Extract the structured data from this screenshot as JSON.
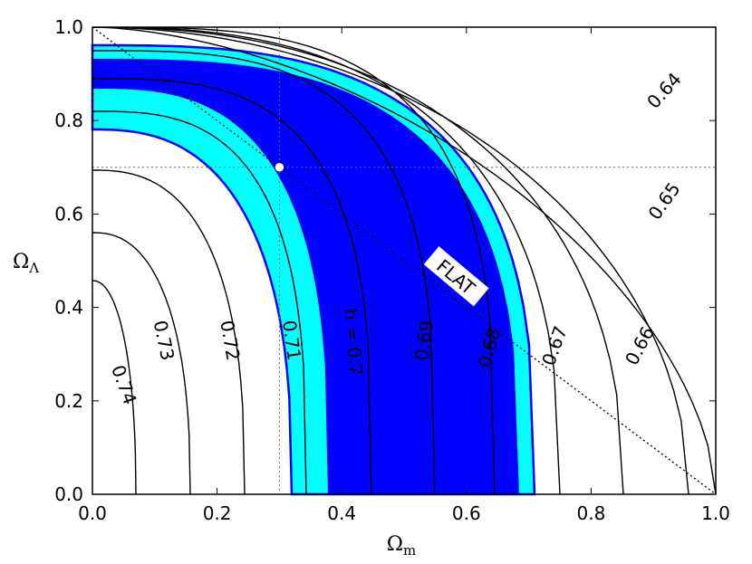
{
  "chart_data": {
    "type": "contour",
    "xlabel_main": "Ω",
    "xlabel_sub": "m",
    "ylabel_main": "Ω",
    "ylabel_sub": "Λ",
    "xlim": [
      0,
      1
    ],
    "ylim": [
      0,
      1
    ],
    "xticks": [
      "0.0",
      "0.2",
      "0.4",
      "0.6",
      "0.8",
      "1.0"
    ],
    "yticks": [
      "0.0",
      "0.2",
      "0.4",
      "0.6",
      "0.8",
      "1.0"
    ],
    "fiducial_point": {
      "x": 0.3,
      "y": 0.7
    },
    "flat_line": {
      "from": [
        0,
        1
      ],
      "to": [
        1,
        0
      ],
      "label": "FLAT"
    },
    "contour_levels": [
      {
        "label": "0.74"
      },
      {
        "label": "0.73"
      },
      {
        "label": "0.72"
      },
      {
        "label": "0.71"
      },
      {
        "label": "h = 0.7"
      },
      {
        "label": "0.69"
      },
      {
        "label": "0.68"
      },
      {
        "label": "0.67"
      },
      {
        "label": "0.66"
      },
      {
        "label": "0.65"
      },
      {
        "label": "0.64"
      }
    ],
    "confidence_regions": [
      {
        "name": "outer",
        "color": "#00ffff"
      },
      {
        "name": "inner",
        "color": "#0000ff"
      }
    ]
  }
}
